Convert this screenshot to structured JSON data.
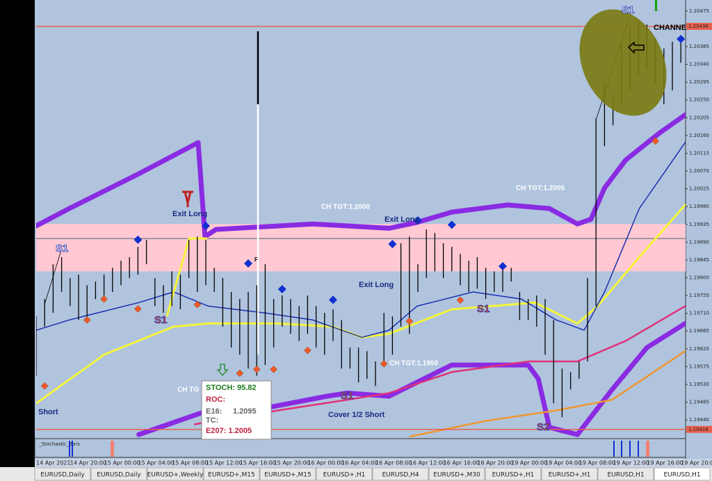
{
  "chart_data": {
    "type": "hl_bars",
    "categories": [
      "14 Apr 2021",
      null,
      null,
      null,
      "14 Apr 20:00",
      null,
      null,
      null,
      "15 Apr 00:00",
      null,
      null,
      null,
      "15 Apr 04:00",
      null,
      null,
      null,
      "15 Apr 08:00",
      null,
      null,
      null,
      "15 Apr 12:00",
      null,
      null,
      null,
      "15 Apr 16:00",
      null,
      null,
      null,
      "15 Apr 20:00",
      null,
      null,
      null,
      "16 Apr 00:00",
      null,
      null,
      null,
      "16 Apr 04:00",
      null,
      null,
      null,
      "16 Apr 08:00",
      null,
      null,
      null,
      "16 Apr 12:00",
      null,
      null,
      null,
      "16 Apr 16:00",
      null,
      null,
      null,
      "16 Apr 20:00",
      null,
      null,
      null,
      "19 Apr 00:00",
      null,
      null,
      null,
      "19 Apr 04:00",
      null,
      null,
      null,
      "19 Apr 08:00",
      null,
      null,
      null,
      "19 Apr 12:00",
      null,
      null,
      null,
      "19 Apr 16:00",
      null,
      null,
      null,
      "19 Apr 20:00"
    ],
    "high": [
      1.19702,
      1.19746,
      1.19834,
      1.19852,
      1.19799,
      1.19808,
      1.19781,
      1.1979,
      1.19808,
      1.19825,
      1.19843,
      1.19852,
      1.19878,
      1.19896,
      1.19799,
      1.19781,
      1.19816,
      1.19808,
      1.19896,
      1.19904,
      1.19896,
      1.19825,
      1.19799,
      1.19764,
      1.19746,
      1.19764,
      1.19781,
      1.19834,
      1.19746,
      1.19755,
      1.19746,
      1.19728,
      1.19755,
      1.19728,
      1.19711,
      1.1972,
      1.19693,
      1.19623,
      1.19623,
      1.19614,
      1.19588,
      1.19711,
      1.19702,
      1.19887,
      1.19904,
      1.19834,
      1.19922,
      1.19913,
      1.19887,
      1.19878,
      1.1986,
      1.19843,
      1.19852,
      1.19825,
      1.19816,
      1.19834,
      1.19825,
      1.19764,
      1.19746,
      1.19755,
      1.19746,
      1.19693,
      1.1957,
      1.19561,
      1.19588,
      1.19799,
      1.20204,
      1.20292,
      1.20256,
      1.20397,
      1.20432,
      1.2045,
      1.20441,
      1.20406,
      1.2038,
      1.20397,
      1.20406
    ],
    "low": [
      1.19552,
      1.19676,
      1.19711,
      1.19764,
      1.19728,
      1.19693,
      1.19702,
      1.19746,
      1.19755,
      1.19764,
      1.19781,
      1.19799,
      1.19808,
      1.19834,
      1.19728,
      1.19711,
      1.19728,
      1.1972,
      1.19799,
      1.19764,
      1.19781,
      1.19764,
      1.19676,
      1.19623,
      1.19605,
      1.1957,
      1.19552,
      1.19579,
      1.19623,
      1.19676,
      1.19658,
      1.1964,
      1.19658,
      1.19623,
      1.19605,
      1.1964,
      1.1957,
      1.1957,
      1.19535,
      1.19544,
      1.19526,
      1.19588,
      1.19605,
      1.19676,
      1.19658,
      1.19764,
      1.19799,
      1.19816,
      1.19799,
      1.19816,
      1.19781,
      1.19764,
      1.19772,
      1.19746,
      1.19764,
      1.19764,
      1.1979,
      1.19693,
      1.19693,
      1.19676,
      1.19605,
      1.19482,
      1.19447,
      1.19517,
      1.19544,
      1.19588,
      1.19728,
      1.20133,
      1.20186,
      1.20239,
      1.20274,
      1.20309,
      1.20327,
      1.20292,
      1.20239,
      1.20274,
      1.20344
    ],
    "ylim": [
      1.19398,
      1.20494
    ],
    "yticks": [
      1.20475,
      1.20385,
      {
        "value": 1.2034,
        "label": "1.20340"
      },
      1.20295,
      {
        "value": 1.2025,
        "label": "1.20250"
      },
      1.20205,
      {
        "value": 1.2016,
        "label": "1.20160"
      },
      1.20115,
      {
        "value": 1.2007,
        "label": "1.20070"
      },
      1.20025,
      {
        "value": 1.1998,
        "label": "1.19980"
      },
      1.19935,
      {
        "value": 1.1989,
        "label": "1.19890"
      },
      1.19845,
      {
        "value": 1.198,
        "label": "1.19800"
      },
      1.19755,
      {
        "value": 1.1971,
        "label": "1.19710"
      },
      1.19665,
      {
        "value": 1.1962,
        "label": "1.19620"
      },
      1.19575,
      {
        "value": 1.1953,
        "label": "1.19530"
      },
      1.19485,
      {
        "value": 1.1944,
        "label": "1.19440"
      }
    ],
    "band": [
      1.19816,
      1.19936
    ],
    "band_color": "#ffc8d2",
    "price_lines": [
      {
        "value": 1.20436,
        "color": "#e8604c"
      },
      {
        "value": 1.19416,
        "color": "#e8604c"
      }
    ],
    "gray_line": 1.19899,
    "lines": [
      {
        "color": "#8a2be2",
        "x": [
          0,
          3.9,
          12.1,
          19.1,
          19.9,
          21.2,
          32.6,
          41.6,
          44.9,
          49,
          55.6,
          60.5,
          63.8,
          65.4,
          67,
          69.5,
          73.6,
          76.5
        ],
        "values": [
          1.19931,
          1.19975,
          1.20063,
          1.20142,
          1.19904,
          1.19922,
          1.19936,
          1.19925,
          1.1994,
          1.19966,
          1.19984,
          1.19975,
          1.19936,
          1.19948,
          1.20027,
          1.20098,
          1.20168,
          1.20212
        ]
      },
      {
        "color": "#8a2be2",
        "x": [
          12.1,
          20.3,
          27.7,
          34.3,
          36.7,
          41.6,
          49,
          58,
          59.2,
          60.5,
          63.8,
          67.9,
          72,
          76.5
        ],
        "values": [
          1.19403,
          1.19464,
          1.19473,
          1.195,
          1.19508,
          1.195,
          1.19579,
          1.19579,
          1.19544,
          1.19421,
          1.19403,
          1.19517,
          1.19623,
          1.19684
        ]
      },
      {
        "color": "#f5f53a",
        "x": [
          0,
          8,
          16.2,
          20.3,
          28.5,
          35,
          38.4,
          41.6,
          49,
          58.8,
          63.8,
          66.2,
          71.1,
          76.5
        ],
        "values": [
          1.19482,
          1.19605,
          1.19676,
          1.19684,
          1.19684,
          1.19676,
          1.19649,
          1.19658,
          1.1972,
          1.19737,
          1.19684,
          1.19728,
          1.19852,
          1.19984
        ]
      },
      {
        "color": "#1a2fb0",
        "x": [
          0,
          3.9,
          12.1,
          16.2,
          20.3,
          26.9,
          32.6,
          38.4,
          41.6,
          44.9,
          51.5,
          57.2,
          61.3,
          64.6,
          67,
          71.1,
          76.5
        ],
        "values": [
          1.19667,
          1.19693,
          1.19737,
          1.19764,
          1.19728,
          1.19711,
          1.19693,
          1.19649,
          1.19667,
          1.19728,
          1.19764,
          1.19746,
          1.19693,
          1.19667,
          1.19764,
          1.19975,
          1.20142
        ]
      },
      {
        "color": "#e0307a",
        "x": [
          18.7,
          28.5,
          36.7,
          41.6,
          49,
          58,
          63.8,
          69.5,
          76.5
        ],
        "values": [
          1.19429,
          1.19464,
          1.19491,
          1.19508,
          1.19561,
          1.19588,
          1.19588,
          1.1964,
          1.19728
        ]
      },
      {
        "color": "#f0962e",
        "x": [
          44.1,
          53.1,
          61.3,
          67.9,
          76.5
        ],
        "values": [
          1.19398,
          1.19438,
          1.19464,
          1.19491,
          1.19614
        ]
      }
    ],
    "signals_up": {
      "color": "#1030d0",
      "x": [
        12,
        20,
        25,
        29,
        35,
        42,
        45,
        49,
        55,
        76
      ],
      "values": [
        1.19896,
        1.19931,
        1.19836,
        1.19771,
        1.19744,
        1.19885,
        1.19945,
        1.19934,
        1.19829,
        1.20404
      ]
    },
    "signals_down": {
      "color": "#f05a28",
      "x": [
        1,
        6,
        8,
        12,
        19,
        24,
        26,
        28,
        32,
        41,
        44,
        50,
        73
      ],
      "values": [
        1.19526,
        1.19693,
        1.19746,
        1.19721,
        1.19732,
        1.19558,
        1.19568,
        1.19568,
        1.19616,
        1.19582,
        1.1969,
        1.19743,
        1.20146
      ]
    },
    "annotations": [
      "S1",
      "S1",
      "S1",
      "S1",
      "S2",
      "S1",
      "Exit Long",
      "Exit Long",
      "Exit Long",
      "CH TGT:1.2000",
      "CH TGT:1.2005",
      "CH TGT:1.1950",
      "CH TG",
      "Short",
      "Cover 1/2 Short",
      "CHANNE",
      "F"
    ]
  },
  "popup": {
    "stoch": "STOCH: 95.82",
    "roc": "ROC:",
    "e16": "E16:",
    "e16_value": "1.2095",
    "tc": "TC:",
    "e207": "E207: 1.2005"
  },
  "indicator_window": {
    "label": "_Stochastic_Bars"
  },
  "tabs": [
    "EURUSD,Daily",
    "EURUSD,Daily",
    "EURUSD+,Weekly",
    "EURUSD+,M15",
    "EURUSD+,M15",
    "EURUSD+,H1",
    "EURUSD,H4",
    "EURUSD+,M30",
    "EURUSD+,H1",
    "EURUSD+,H1",
    "EURUSD,H1",
    "EURUSD,H1"
  ]
}
